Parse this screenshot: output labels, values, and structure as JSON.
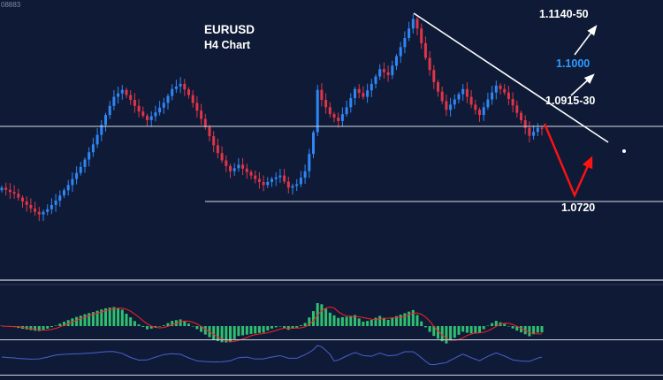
{
  "colors": {
    "background": "#0f1b36",
    "bull": "#2f86f6",
    "bear": "#e03448",
    "hist": "#2fbf71",
    "signal": "#ff2020",
    "osc": "#4a5fd0",
    "hline": "#d7dbe6",
    "trend": "#ffffff",
    "arrow_red": "#ff1212",
    "label_blue": "#2e9bff"
  },
  "labels": {
    "symbol": "EURUSD",
    "timeframe": "H4 Chart",
    "quote": "08883"
  },
  "chart_data": {
    "type": "candlestick",
    "title": "EURUSD H4 Chart",
    "symbol": "EURUSD",
    "timeframe": "H4",
    "ylim": [
      1.0542,
      1.1186
    ],
    "levels": {
      "upper_target": "1.1140-50",
      "round_number": "1.1000",
      "resistance_zone": "1.0915-30",
      "support": "1.0720"
    },
    "annotations": [
      {
        "type": "trendline",
        "desc": "descending resistance from swing high"
      },
      {
        "type": "arrow",
        "color": "white",
        "desc": "up toward 1.1140-50"
      },
      {
        "type": "arrow",
        "color": "white",
        "desc": "up toward 1.0915-30"
      },
      {
        "type": "arrow",
        "color": "red",
        "desc": "drop to 1.0720 support then bounce"
      }
    ],
    "indicators": [
      "macd-histogram",
      "momentum-oscillator"
    ],
    "closes": [
      1.0752,
      1.0747,
      1.0742,
      1.0738,
      1.0729,
      1.072,
      1.0712,
      1.0704,
      1.0696,
      1.069,
      1.0696,
      1.0702,
      1.0712,
      1.0722,
      1.0734,
      1.0746,
      1.0758,
      1.0772,
      1.0786,
      1.08,
      1.0817,
      1.0834,
      1.0852,
      1.0874,
      1.0897,
      1.092,
      1.0941,
      1.0962,
      1.097,
      1.0978,
      1.0966,
      1.0955,
      1.0941,
      1.0928,
      1.0918,
      1.0908,
      1.0917,
      1.0926,
      1.0937,
      1.0948,
      1.0964,
      1.098,
      1.0986,
      1.0992,
      1.0979,
      1.0966,
      1.0948,
      1.093,
      1.0911,
      1.0892,
      1.0871,
      1.085,
      1.0832,
      1.0815,
      1.0802,
      1.079,
      1.0797,
      1.0805,
      1.0796,
      1.0788,
      1.078,
      1.0772,
      1.0765,
      1.0758,
      1.0765,
      1.0772,
      1.0776,
      1.078,
      1.0766,
      1.0752,
      1.0756,
      1.076,
      1.0775,
      1.079,
      1.083,
      1.088,
      1.0978,
      1.0955,
      1.0938,
      1.0922,
      1.0914,
      1.0906,
      1.0922,
      1.0938,
      1.0959,
      1.098,
      1.0971,
      1.0962,
      1.0977,
      1.0992,
      1.1009,
      1.1026,
      1.1019,
      1.1012,
      1.1034,
      1.1056,
      1.1077,
      1.1098,
      1.112,
      1.1142,
      1.112,
      1.1086,
      1.1052,
      1.1024,
      1.0996,
      1.0974,
      1.0952,
      1.0932,
      1.0944,
      1.0956,
      1.0968,
      1.098,
      1.0962,
      1.0944,
      1.0932,
      1.092,
      1.0938,
      1.0956,
      1.0972,
      1.0988,
      1.098,
      1.0972,
      1.0957,
      1.0942,
      1.0925,
      1.0908,
      1.089,
      1.0872,
      1.0881,
      1.089,
      1.0888
    ]
  }
}
